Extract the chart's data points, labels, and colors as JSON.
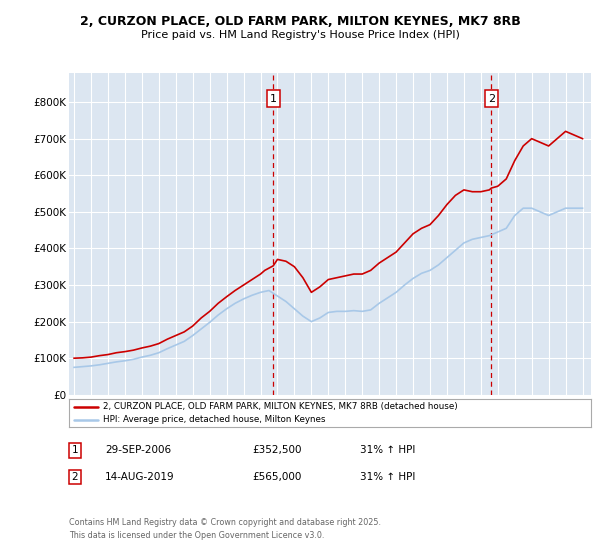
{
  "title_line1": "2, CURZON PLACE, OLD FARM PARK, MILTON KEYNES, MK7 8RB",
  "title_line2": "Price paid vs. HM Land Registry's House Price Index (HPI)",
  "background_color": "#dce6f1",
  "plot_bg_color": "#dce6f1",
  "red_color": "#cc0000",
  "blue_color": "#a8c8e8",
  "ylim": [
    0,
    880000
  ],
  "yticks": [
    0,
    100000,
    200000,
    300000,
    400000,
    500000,
    600000,
    700000,
    800000
  ],
  "ytick_labels": [
    "£0",
    "£100K",
    "£200K",
    "£300K",
    "£400K",
    "£500K",
    "£600K",
    "£700K",
    "£800K"
  ],
  "marker1_date": 2006.75,
  "marker2_date": 2019.62,
  "marker1_label": "1",
  "marker2_label": "2",
  "legend_line1": "2, CURZON PLACE, OLD FARM PARK, MILTON KEYNES, MK7 8RB (detached house)",
  "legend_line2": "HPI: Average price, detached house, Milton Keynes",
  "ann1_label": "1",
  "ann1_date": "29-SEP-2006",
  "ann1_price": "£352,500",
  "ann1_hpi": "31% ↑ HPI",
  "ann2_label": "2",
  "ann2_date": "14-AUG-2019",
  "ann2_price": "£565,000",
  "ann2_hpi": "31% ↑ HPI",
  "footer": "Contains HM Land Registry data © Crown copyright and database right 2025.\nThis data is licensed under the Open Government Licence v3.0.",
  "red_x": [
    1995,
    1995.5,
    1996,
    1996.5,
    1997,
    1997.5,
    1998,
    1998.5,
    1999,
    1999.5,
    2000,
    2000.5,
    2001,
    2001.5,
    2002,
    2002.5,
    2003,
    2003.5,
    2004,
    2004.5,
    2005,
    2005.5,
    2006,
    2006.25,
    2006.75,
    2007,
    2007.5,
    2008,
    2008.5,
    2009,
    2009.5,
    2010,
    2010.5,
    2011,
    2011.5,
    2012,
    2012.5,
    2013,
    2013.5,
    2014,
    2014.5,
    2015,
    2015.5,
    2016,
    2016.5,
    2017,
    2017.5,
    2018,
    2018.5,
    2019,
    2019.5,
    2019.62,
    2020,
    2020.5,
    2021,
    2021.5,
    2022,
    2022.5,
    2023,
    2023.5,
    2024,
    2024.5,
    2025
  ],
  "red_y": [
    100000,
    101000,
    103000,
    107000,
    110000,
    115000,
    118000,
    122000,
    128000,
    133000,
    140000,
    152000,
    162000,
    172000,
    188000,
    210000,
    228000,
    250000,
    268000,
    285000,
    300000,
    315000,
    330000,
    340000,
    352500,
    370000,
    365000,
    350000,
    320000,
    280000,
    295000,
    315000,
    320000,
    325000,
    330000,
    330000,
    340000,
    360000,
    375000,
    390000,
    415000,
    440000,
    455000,
    465000,
    490000,
    520000,
    545000,
    560000,
    555000,
    555000,
    560000,
    565000,
    570000,
    590000,
    640000,
    680000,
    700000,
    690000,
    680000,
    700000,
    720000,
    710000,
    700000
  ],
  "blue_x": [
    1995,
    1995.5,
    1996,
    1996.5,
    1997,
    1997.5,
    1998,
    1998.5,
    1999,
    1999.5,
    2000,
    2000.5,
    2001,
    2001.5,
    2002,
    2002.5,
    2003,
    2003.5,
    2004,
    2004.5,
    2005,
    2005.5,
    2006,
    2006.5,
    2007,
    2007.5,
    2008,
    2008.5,
    2009,
    2009.5,
    2010,
    2010.5,
    2011,
    2011.5,
    2012,
    2012.5,
    2013,
    2013.5,
    2014,
    2014.5,
    2015,
    2015.5,
    2016,
    2016.5,
    2017,
    2017.5,
    2018,
    2018.5,
    2019,
    2019.5,
    2020,
    2020.5,
    2021,
    2021.5,
    2022,
    2022.5,
    2023,
    2023.5,
    2024,
    2024.5,
    2025
  ],
  "blue_y": [
    75000,
    77000,
    79000,
    82000,
    86000,
    90000,
    93000,
    97000,
    103000,
    108000,
    115000,
    126000,
    136000,
    146000,
    162000,
    180000,
    198000,
    218000,
    235000,
    250000,
    262000,
    272000,
    280000,
    285000,
    270000,
    255000,
    235000,
    215000,
    200000,
    210000,
    225000,
    228000,
    228000,
    230000,
    228000,
    232000,
    250000,
    265000,
    280000,
    300000,
    318000,
    332000,
    340000,
    355000,
    375000,
    395000,
    415000,
    425000,
    430000,
    435000,
    445000,
    455000,
    490000,
    510000,
    510000,
    500000,
    490000,
    500000,
    510000,
    510000,
    510000
  ]
}
